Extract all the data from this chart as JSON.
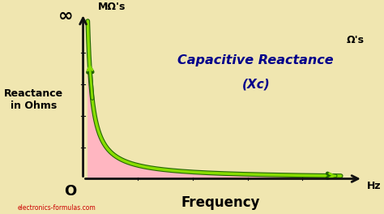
{
  "bg_color": "#f0e6b0",
  "plot_fill_color": "#ffb6c1",
  "curve_color": "#88dd00",
  "curve_edge_color": "#226600",
  "curve_linewidth": 2.5,
  "curve_edge_linewidth": 0.8,
  "axis_color": "#111111",
  "axis_linewidth": 2.0,
  "title_text": "Capacitive Reactance",
  "subtitle_text": "(Xc)",
  "title_color": "#00008b",
  "title_fontsize": 11.5,
  "subtitle_fontsize": 11,
  "ylabel_text": "Reactance\nin Ohms",
  "ylabel_fontsize": 9,
  "xlabel_text": "Frequency",
  "xlabel_fontsize": 12,
  "inf_label": "∞",
  "zero_label": "O",
  "mohm_label": "MΩ's",
  "ohm_label": "Ω's",
  "hz_label": "Hz",
  "watermark": "electronics-formulas.com",
  "watermark_color": "#cc0000",
  "watermark_fontsize": 5.5,
  "inf_fontsize": 16,
  "zero_fontsize": 13,
  "mohm_fontsize": 9,
  "ohm_fontsize": 9,
  "hz_fontsize": 9
}
